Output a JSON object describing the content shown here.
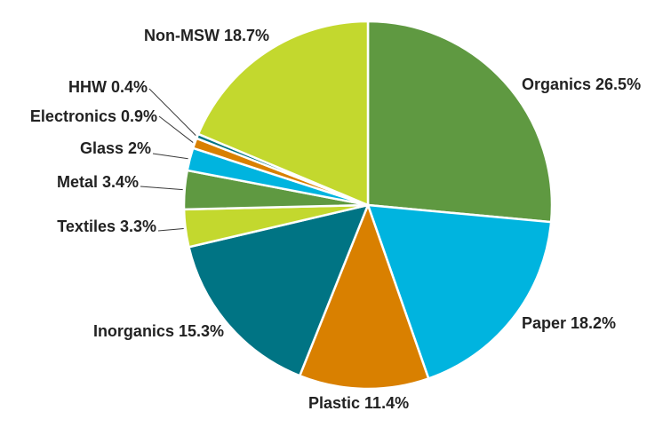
{
  "chart_data": {
    "type": "pie",
    "title": "",
    "slices": [
      {
        "label": "Organics 26.5%",
        "name": "Organics",
        "value": 26.5,
        "color": "#5f9941"
      },
      {
        "label": "Paper 18.2%",
        "name": "Paper",
        "value": 18.2,
        "color": "#00b4df"
      },
      {
        "label": "Plastic 11.4%",
        "name": "Plastic",
        "value": 11.4,
        "color": "#d98000"
      },
      {
        "label": "Inorganics 15.3%",
        "name": "Inorganics",
        "value": 15.3,
        "color": "#007484"
      },
      {
        "label": "Textiles 3.3%",
        "name": "Textiles",
        "value": 3.3,
        "color": "#c3d82e"
      },
      {
        "label": "Metal 3.4%",
        "name": "Metal",
        "value": 3.4,
        "color": "#5f9941"
      },
      {
        "label": "Glass 2%",
        "name": "Glass",
        "value": 2,
        "color": "#00b4df"
      },
      {
        "label": "Electronics 0.9%",
        "name": "Electronics",
        "value": 0.9,
        "color": "#d98000"
      },
      {
        "label": "HHW 0.4%",
        "name": "HHW",
        "value": 0.4,
        "color": "#007484"
      },
      {
        "label": "Non-MSW 18.7%",
        "name": "Non-MSW",
        "value": 18.7,
        "color": "#c3d82e"
      }
    ]
  }
}
